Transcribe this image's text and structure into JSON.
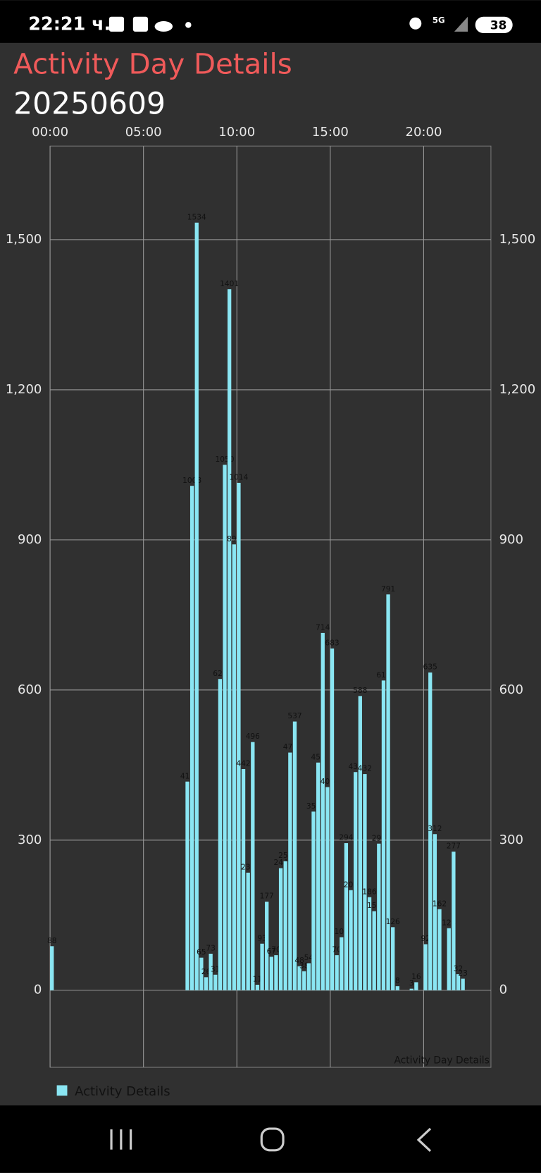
{
  "status_bar": {
    "time": "22:21 ч.",
    "network": "5G",
    "battery": "38"
  },
  "header": {
    "title": "Activity Day Details",
    "date": "20250609"
  },
  "chart_data": {
    "type": "bar",
    "description": "Activity Day Details",
    "x": [
      0,
      7.25,
      7.5,
      7.75,
      8,
      8.25,
      8.5,
      8.75,
      9,
      9.25,
      9.5,
      9.75,
      10,
      10.25,
      10.5,
      10.75,
      11,
      11.25,
      11.5,
      11.75,
      12,
      12.25,
      12.5,
      12.75,
      13,
      13.25,
      13.5,
      13.75,
      14,
      14.25,
      14.5,
      14.75,
      15,
      15.25,
      15.5,
      15.75,
      16,
      16.25,
      16.5,
      16.75,
      17,
      17.25,
      17.5,
      17.75,
      18,
      18.25,
      18.5,
      19.25,
      19.5,
      20,
      20.25,
      20.5,
      20.75,
      21.25,
      21.5,
      21.75,
      22
    ],
    "series": [
      {
        "name": "Activity Details",
        "color": "#8ae6f3",
        "values": [
          88,
          417,
          1008,
          1534,
          65,
          26,
          73,
          31,
          622,
          1050,
          1401,
          891,
          1014,
          442,
          235,
          496,
          11,
          93,
          177,
          67,
          70,
          244,
          258,
          475,
          537,
          48,
          38,
          54,
          357,
          455,
          714,
          406,
          683,
          70,
          106,
          294,
          200,
          436,
          588,
          432,
          186,
          158,
          293,
          619,
          791,
          126,
          8,
          3,
          16,
          92,
          635,
          312,
          162,
          124,
          277,
          32,
          23
        ]
      }
    ],
    "xlim": [
      0,
      23.6
    ],
    "xticks": [
      {
        "value": 0,
        "label": "00:00"
      },
      {
        "value": 5,
        "label": "05:00"
      },
      {
        "value": 10,
        "label": "10:00"
      },
      {
        "value": 15,
        "label": "15:00"
      },
      {
        "value": 20,
        "label": "20:00"
      }
    ],
    "ylim": [
      -154,
      1687
    ],
    "yticks": [
      0,
      300,
      600,
      900,
      {
        "value": 1200,
        "label": "1,200"
      },
      {
        "value": 1500,
        "label": "1,500"
      }
    ],
    "grid": true,
    "legend": "bottom-left"
  }
}
